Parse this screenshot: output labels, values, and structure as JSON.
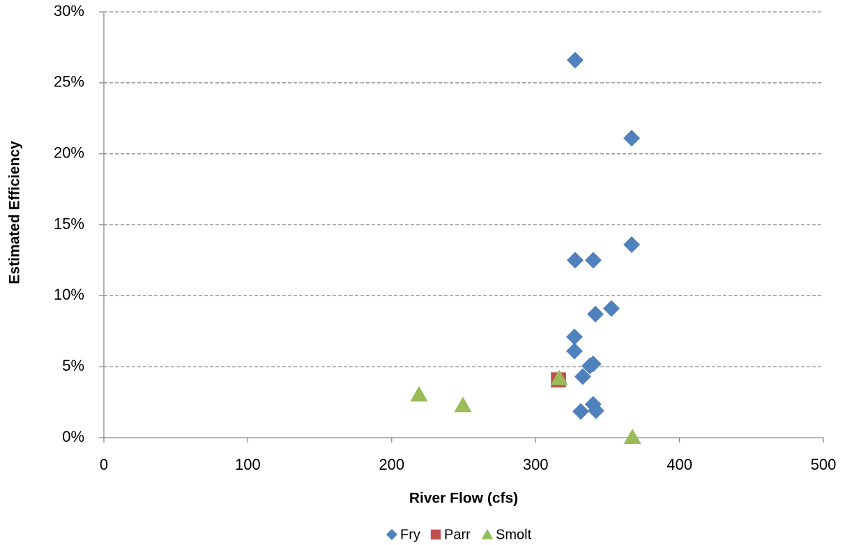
{
  "chart_data": {
    "type": "scatter",
    "x_label": "River Flow (cfs)",
    "y_label": "Estimated Efficiency",
    "xlim": [
      0,
      500
    ],
    "xticks": [
      0,
      100,
      200,
      300,
      400,
      500
    ],
    "ylim": [
      0,
      30
    ],
    "yticks": [
      {
        "value": 0,
        "label": "0%"
      },
      {
        "value": 5,
        "label": "5%"
      },
      {
        "value": 10,
        "label": "10%"
      },
      {
        "value": 15,
        "label": "15%"
      },
      {
        "value": 20,
        "label": "20%"
      },
      {
        "value": 25,
        "label": "25%"
      },
      {
        "value": 30,
        "label": "30%"
      }
    ],
    "grid": true,
    "legend": "bottom",
    "series": [
      {
        "name": "Fry",
        "color": "#4f81bd",
        "marker": "diamond",
        "x": [
          327.5,
          366.8,
          366.8,
          327.5,
          340.1,
          341.6,
          352.7,
          327,
          327,
          340,
          337.7,
          332.8,
          340,
          331.4,
          342
        ],
        "values": [
          26.6,
          21.1,
          13.6,
          12.5,
          12.5,
          8.7,
          9.1,
          7.1,
          6.1,
          5.2,
          5.05,
          4.3,
          2.35,
          1.85,
          1.9
        ]
      },
      {
        "name": "Parr",
        "color": "#c0504d",
        "marker": "square",
        "x": [
          315.9
        ],
        "values": [
          4.07
        ]
      },
      {
        "name": "Smolt",
        "color": "#9bbb59",
        "marker": "triangle",
        "x": [
          219,
          249.5,
          316.4,
          367.3
        ],
        "values": [
          3.05,
          2.3,
          4.2,
          0.05
        ]
      }
    ]
  }
}
